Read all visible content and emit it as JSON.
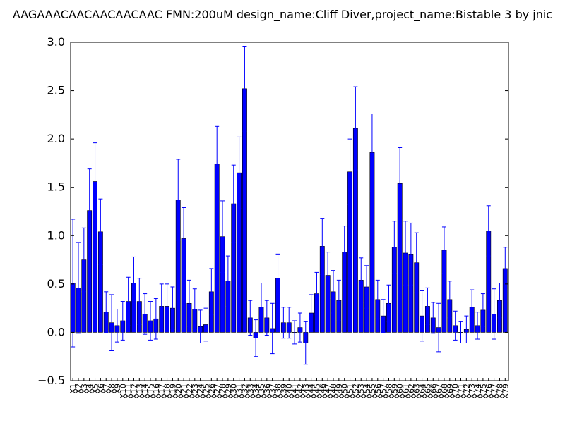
{
  "chart_data": {
    "type": "bar",
    "title": "AAGAAACAACAACAACAAC  FMN:200uM  design_name:Cliff Diver,project_name:Bistable 3 by jnic",
    "xlabel": "",
    "ylabel": "",
    "ylim": [
      -0.5,
      3.0
    ],
    "yticks": [
      "−0.5",
      "0.0",
      "0.5",
      "1.0",
      "1.5",
      "2.0",
      "2.5",
      "3.0"
    ],
    "grid": false,
    "legend": "none",
    "bar_color": "#0000ff",
    "categories": [
      "X1",
      "X2",
      "X3",
      "X4",
      "X5",
      "X6",
      "X7",
      "X8",
      "X9",
      "X10",
      "X11",
      "X12",
      "X13",
      "X14",
      "X15",
      "X16",
      "X17",
      "X18",
      "X19",
      "X20",
      "X21",
      "X22",
      "X23",
      "X24",
      "X25",
      "X26",
      "X27",
      "X28",
      "X29",
      "X30",
      "X31",
      "X32",
      "X33",
      "X34",
      "X35",
      "X36",
      "X37",
      "X38",
      "X39",
      "X40",
      "X41",
      "X42",
      "X43",
      "X44",
      "X45",
      "X46",
      "X47",
      "X48",
      "X49",
      "X50",
      "X51",
      "X52",
      "X53",
      "X54",
      "X55",
      "X56",
      "X57",
      "X58",
      "X59",
      "X60",
      "X61",
      "X62",
      "X63",
      "X64",
      "X65",
      "X66",
      "X67",
      "X68",
      "X69",
      "X70",
      "X71",
      "X72",
      "X73",
      "X74",
      "X75",
      "X76",
      "X77",
      "X78",
      "X79"
    ],
    "values": [
      0.51,
      0.46,
      0.75,
      1.26,
      1.56,
      1.04,
      0.21,
      0.1,
      0.07,
      0.12,
      0.32,
      0.51,
      0.32,
      0.19,
      0.12,
      0.14,
      0.27,
      0.27,
      0.25,
      1.37,
      0.97,
      0.3,
      0.24,
      0.06,
      0.08,
      0.42,
      1.74,
      0.99,
      0.53,
      1.33,
      1.65,
      2.52,
      0.15,
      -0.06,
      0.26,
      0.15,
      0.04,
      0.56,
      0.1,
      0.1,
      0.0,
      0.05,
      -0.11,
      0.2,
      0.4,
      0.89,
      0.59,
      0.42,
      0.33,
      0.83,
      1.66,
      2.11,
      0.54,
      0.47,
      1.86,
      0.34,
      0.17,
      0.3,
      0.88,
      1.54,
      0.82,
      0.81,
      0.72,
      0.17,
      0.27,
      0.15,
      0.05,
      0.85,
      0.34,
      0.07,
      0.0,
      0.03,
      0.26,
      0.07,
      0.23,
      1.05,
      0.19,
      0.33,
      0.66
    ],
    "errors": [
      0.66,
      0.47,
      0.33,
      0.43,
      0.4,
      0.34,
      0.21,
      0.29,
      0.17,
      0.2,
      0.25,
      0.27,
      0.24,
      0.21,
      0.2,
      0.21,
      0.23,
      0.23,
      0.22,
      0.42,
      0.32,
      0.24,
      0.21,
      0.17,
      0.17,
      0.24,
      0.39,
      0.37,
      0.26,
      0.4,
      0.37,
      0.44,
      0.18,
      0.19,
      0.25,
      0.18,
      0.26,
      0.25,
      0.16,
      0.16,
      0.12,
      0.15,
      0.22,
      0.19,
      0.22,
      0.29,
      0.24,
      0.22,
      0.21,
      0.27,
      0.34,
      0.43,
      0.23,
      0.22,
      0.4,
      0.2,
      0.17,
      0.19,
      0.27,
      0.37,
      0.33,
      0.32,
      0.31,
      0.26,
      0.19,
      0.16,
      0.25,
      0.24,
      0.19,
      0.15,
      0.11,
      0.14,
      0.18,
      0.14,
      0.17,
      0.26,
      0.26,
      0.18,
      0.22
    ]
  }
}
